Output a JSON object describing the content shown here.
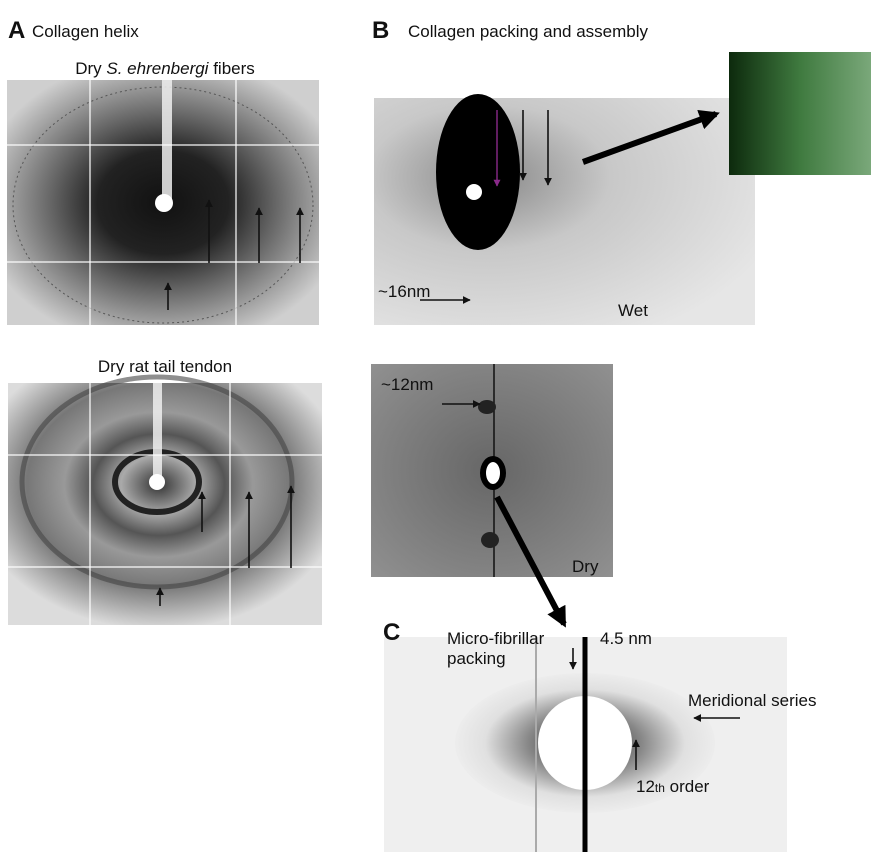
{
  "panels": {
    "A": {
      "label": "A",
      "title": "Collagen helix",
      "images": [
        {
          "caption_parts": [
            "Dry ",
            "S. ehrenbergi",
            " fibers"
          ]
        },
        {
          "caption": "Dry rat tail tendon"
        }
      ]
    },
    "B": {
      "label": "B",
      "title": "Collagen packing and assembly",
      "wet": {
        "spacing": "~16nm",
        "condition": "Wet"
      },
      "dry": {
        "spacing": "~12nm",
        "condition": "Dry"
      }
    },
    "C": {
      "label": "C",
      "packing_lines": [
        "Micro-fibrillar",
        "packing"
      ],
      "spacing": "4.5 nm",
      "series": "Meridional series",
      "order_parts": [
        "12",
        "th",
        " order"
      ]
    }
  }
}
